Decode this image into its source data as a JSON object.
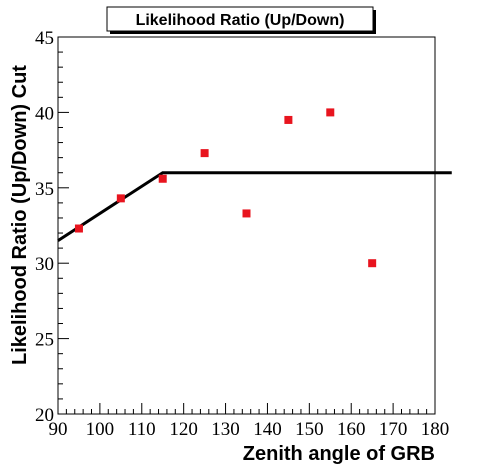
{
  "chart_data": {
    "type": "scatter",
    "title": "Likelihood Ratio (Up/Down)",
    "xlabel": "Zenith angle of GRB",
    "ylabel": "Likelihood Ratio (Up/Down) Cut",
    "xlim": [
      90,
      180
    ],
    "ylim": [
      20,
      45
    ],
    "x_major_ticks": [
      90,
      100,
      110,
      120,
      130,
      140,
      150,
      160,
      170,
      180
    ],
    "y_major_ticks": [
      20,
      25,
      30,
      35,
      40,
      45
    ],
    "grid": false,
    "series": [
      {
        "marker": "square",
        "color": "#e8141e",
        "x": [
          95,
          105,
          115,
          125,
          135,
          145,
          155,
          165
        ],
        "y": [
          32.3,
          34.3,
          35.6,
          37.3,
          33.3,
          39.5,
          40.0,
          30.0
        ]
      },
      {
        "style": "line",
        "color": "#000000",
        "x": [
          90,
          115,
          184
        ],
        "y": [
          31.5,
          36.0,
          36.0
        ]
      }
    ]
  }
}
